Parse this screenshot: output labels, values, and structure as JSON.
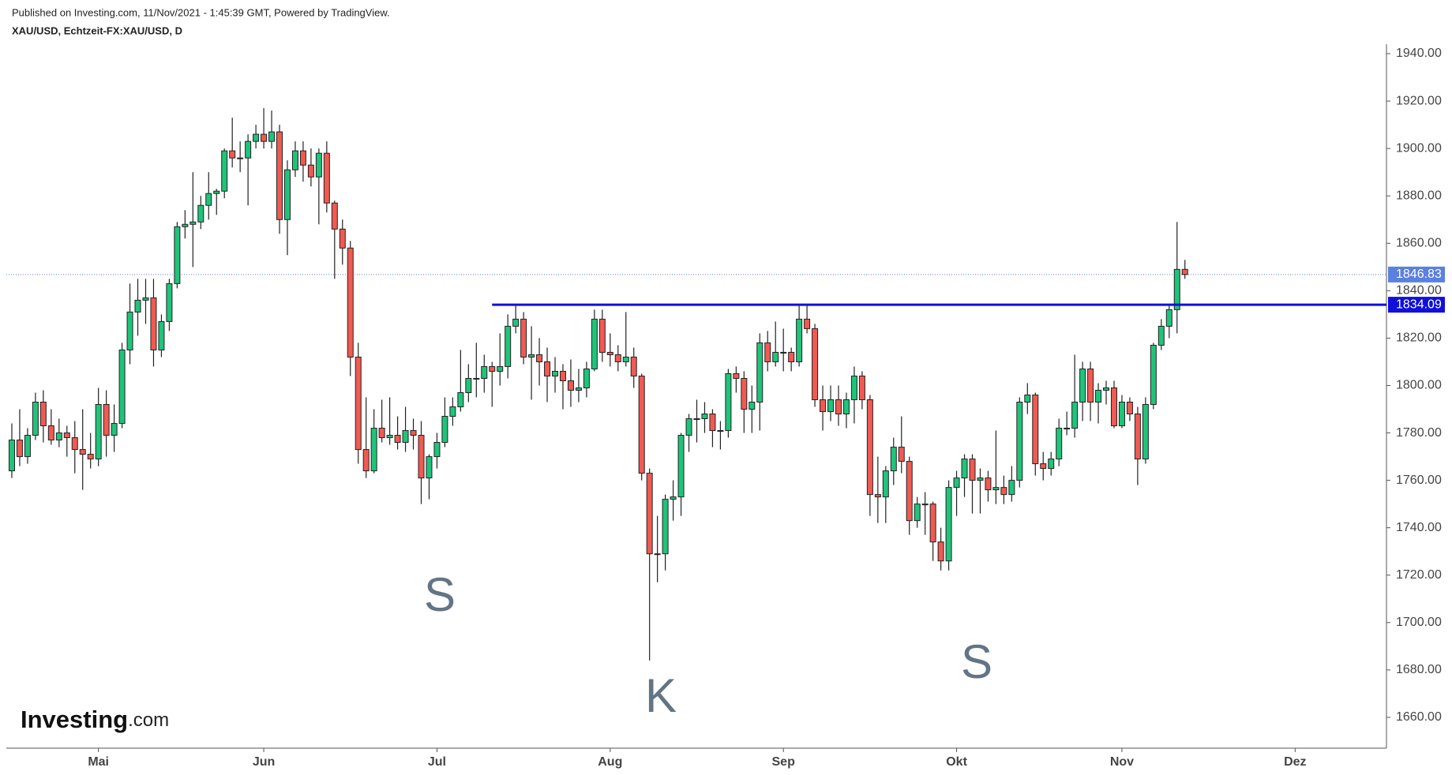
{
  "header": {
    "published": "Published on Investing.com, 11/Nov/2021 - 1:45:39 GMT, Powered by TradingView.",
    "symbol": "XAU/USD, Echtzeit-FX:XAU/USD, D"
  },
  "logo": {
    "name": "Investing",
    "suffix": ".com"
  },
  "chart_data": {
    "type": "candlestick",
    "up_color": "#1fc47b",
    "down_color": "#f05a52",
    "xlim": [
      -0.7,
      174.6
    ],
    "xticks": [
      {
        "value": 11,
        "label": "Mai"
      },
      {
        "value": 32,
        "label": "Jun"
      },
      {
        "value": 54,
        "label": "Jul"
      },
      {
        "value": 76,
        "label": "Aug"
      },
      {
        "value": 98,
        "label": "Sep"
      },
      {
        "value": 120,
        "label": "Okt"
      },
      {
        "value": 141,
        "label": "Nov"
      },
      {
        "value": 163,
        "label": "Dez"
      }
    ],
    "ylim": [
      1647,
      1944
    ],
    "yticks": [
      {
        "value": 1660,
        "label": "1660.00"
      },
      {
        "value": 1680,
        "label": "1680.00"
      },
      {
        "value": 1700,
        "label": "1700.00"
      },
      {
        "value": 1720,
        "label": "1720.00"
      },
      {
        "value": 1740,
        "label": "1740.00"
      },
      {
        "value": 1760,
        "label": "1760.00"
      },
      {
        "value": 1780,
        "label": "1780.00"
      },
      {
        "value": 1800,
        "label": "1800.00"
      },
      {
        "value": 1820,
        "label": "1820.00"
      },
      {
        "value": 1840,
        "label": "1840.00"
      },
      {
        "value": 1860,
        "label": "1860.00"
      },
      {
        "value": 1880,
        "label": "1880.00"
      },
      {
        "value": 1900,
        "label": "1900.00"
      },
      {
        "value": 1920,
        "label": "1920.00"
      },
      {
        "value": 1940,
        "label": "1940.00"
      }
    ],
    "open": [
      1764,
      1777,
      1770,
      1779,
      1793,
      1783,
      1777,
      1780,
      1778,
      1773,
      1771,
      1769,
      1792,
      1779,
      1784,
      1815,
      1831,
      1836,
      1837,
      1815,
      1827,
      1843,
      1867,
      1868,
      1869,
      1876,
      1881,
      1882,
      1899,
      1896,
      1896,
      1903,
      1906,
      1903,
      1907,
      1870,
      1891,
      1899,
      1893,
      1888,
      1898,
      1877,
      1866,
      1858,
      1812,
      1773,
      1764,
      1782,
      1778,
      1779,
      1776,
      1781,
      1779,
      1761,
      1770,
      1776,
      1787,
      1791,
      1797,
      1803,
      1803,
      1808,
      1806,
      1808,
      1825,
      1828,
      1812,
      1813,
      1810,
      1804,
      1806,
      1802,
      1798,
      1799,
      1807,
      1828,
      1814,
      1813,
      1810,
      1812,
      1804,
      1763,
      1729,
      1729,
      1752,
      1753,
      1779,
      1786,
      1786,
      1788,
      1781,
      1781,
      1805,
      1803,
      1790,
      1793,
      1818,
      1810,
      1814,
      1814,
      1810,
      1828,
      1824,
      1794,
      1789,
      1794,
      1788,
      1794,
      1804,
      1794,
      1754,
      1753,
      1764,
      1774,
      1768,
      1743,
      1750,
      1750,
      1734,
      1726,
      1757,
      1761,
      1769,
      1760,
      1761,
      1756,
      1757,
      1754,
      1760,
      1793,
      1796,
      1767,
      1765,
      1769,
      1782,
      1782,
      1793,
      1807,
      1793,
      1798,
      1799,
      1783,
      1793,
      1788,
      1769,
      1792,
      1817,
      1825,
      1832,
      1849
    ],
    "high": [
      1784,
      1790,
      1782,
      1797,
      1798,
      1790,
      1786,
      1783,
      1785,
      1790,
      1780,
      1799,
      1798,
      1792,
      1818,
      1843,
      1845,
      1845,
      1845,
      1830,
      1845,
      1869,
      1874,
      1890,
      1880,
      1890,
      1883,
      1900,
      1913,
      1903,
      1906,
      1910,
      1917,
      1916,
      1910,
      1895,
      1903,
      1903,
      1900,
      1900,
      1903,
      1878,
      1870,
      1861,
      1818,
      1795,
      1790,
      1794,
      1795,
      1787,
      1791,
      1786,
      1785,
      1771,
      1780,
      1795,
      1795,
      1815,
      1809,
      1818,
      1813,
      1810,
      1822,
      1830,
      1834,
      1831,
      1825,
      1820,
      1816,
      1812,
      1809,
      1811,
      1807,
      1810,
      1832,
      1832,
      1822,
      1817,
      1831,
      1816,
      1805,
      1765,
      1745,
      1754,
      1760,
      1780,
      1788,
      1794,
      1793,
      1790,
      1785,
      1807,
      1808,
      1806,
      1800,
      1822,
      1823,
      1827,
      1824,
      1816,
      1834,
      1834,
      1826,
      1800,
      1800,
      1800,
      1797,
      1808,
      1806,
      1796,
      1770,
      1766,
      1778,
      1787,
      1770,
      1753,
      1755,
      1751,
      1740,
      1760,
      1764,
      1771,
      1771,
      1765,
      1764,
      1781,
      1762,
      1766,
      1795,
      1801,
      1797,
      1772,
      1772,
      1786,
      1789,
      1813,
      1810,
      1810,
      1801,
      1802,
      1802,
      1796,
      1795,
      1791,
      1795,
      1818,
      1828,
      1834,
      1869,
      1853
    ],
    "low": [
      1761,
      1766,
      1767,
      1777,
      1776,
      1775,
      1774,
      1770,
      1763,
      1756,
      1765,
      1766,
      1770,
      1772,
      1782,
      1809,
      1821,
      1826,
      1808,
      1812,
      1823,
      1841,
      1862,
      1850,
      1866,
      1870,
      1872,
      1879,
      1892,
      1890,
      1876,
      1900,
      1900,
      1900,
      1864,
      1855,
      1888,
      1886,
      1884,
      1868,
      1873,
      1845,
      1851,
      1804,
      1767,
      1761,
      1763,
      1776,
      1775,
      1773,
      1772,
      1773,
      1750,
      1752,
      1765,
      1774,
      1783,
      1789,
      1793,
      1795,
      1797,
      1791,
      1800,
      1803,
      1822,
      1809,
      1794,
      1800,
      1793,
      1797,
      1790,
      1791,
      1793,
      1795,
      1806,
      1810,
      1808,
      1806,
      1808,
      1799,
      1760,
      1684,
      1717,
      1722,
      1743,
      1745,
      1772,
      1776,
      1780,
      1774,
      1773,
      1778,
      1797,
      1780,
      1780,
      1781,
      1806,
      1808,
      1806,
      1806,
      1808,
      1822,
      1791,
      1781,
      1785,
      1783,
      1782,
      1784,
      1790,
      1745,
      1742,
      1742,
      1758,
      1763,
      1737,
      1740,
      1737,
      1726,
      1722,
      1722,
      1745,
      1753,
      1746,
      1746,
      1751,
      1750,
      1750,
      1751,
      1757,
      1788,
      1762,
      1760,
      1762,
      1766,
      1779,
      1778,
      1785,
      1785,
      1784,
      1792,
      1782,
      1782,
      1785,
      1758,
      1767,
      1790,
      1815,
      1820,
      1822,
      1845
    ],
    "close": [
      1777,
      1770,
      1779,
      1793,
      1783,
      1777,
      1780,
      1778,
      1773,
      1771,
      1769,
      1792,
      1779,
      1784,
      1815,
      1831,
      1836,
      1837,
      1815,
      1827,
      1843,
      1867,
      1868,
      1869,
      1876,
      1881,
      1882,
      1899,
      1896,
      1896,
      1903,
      1906,
      1903,
      1907,
      1870,
      1891,
      1899,
      1893,
      1888,
      1898,
      1877,
      1866,
      1858,
      1812,
      1773,
      1764,
      1782,
      1778,
      1779,
      1776,
      1781,
      1779,
      1761,
      1770,
      1776,
      1787,
      1791,
      1797,
      1803,
      1803,
      1808,
      1806,
      1808,
      1825,
      1828,
      1812,
      1813,
      1810,
      1804,
      1806,
      1802,
      1798,
      1799,
      1807,
      1828,
      1814,
      1813,
      1810,
      1812,
      1804,
      1763,
      1729,
      1729,
      1752,
      1753,
      1779,
      1786,
      1786,
      1788,
      1781,
      1781,
      1805,
      1803,
      1790,
      1793,
      1818,
      1810,
      1814,
      1814,
      1810,
      1828,
      1824,
      1794,
      1789,
      1794,
      1788,
      1794,
      1804,
      1794,
      1754,
      1753,
      1764,
      1774,
      1768,
      1743,
      1750,
      1750,
      1734,
      1726,
      1757,
      1761,
      1769,
      1760,
      1761,
      1756,
      1757,
      1754,
      1760,
      1793,
      1796,
      1767,
      1765,
      1769,
      1782,
      1782,
      1793,
      1807,
      1793,
      1798,
      1799,
      1783,
      1793,
      1788,
      1769,
      1792,
      1817,
      1825,
      1832,
      1849,
      1846.83
    ],
    "last_price": 1846.83,
    "last_price_color": "#5a80e0",
    "resistance": {
      "value": 1834.09,
      "start": 61,
      "color": "#1010da"
    },
    "annotations": [
      "S",
      "K",
      "S"
    ]
  }
}
